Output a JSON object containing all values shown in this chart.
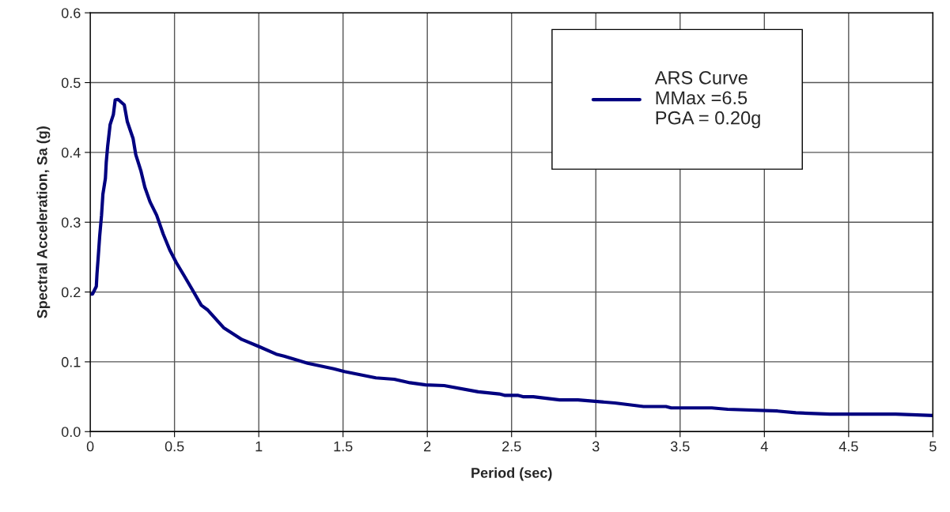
{
  "chart_data": {
    "type": "line",
    "xlabel": "Period (sec)",
    "ylabel": "Spectral Acceleration, Sa (g)",
    "xlim": [
      0,
      5
    ],
    "xticks": [
      0,
      0.5,
      1,
      1.5,
      2,
      2.5,
      3,
      3.5,
      4,
      4.5,
      5
    ],
    "ylim": [
      0,
      0.6
    ],
    "yticks": [
      {
        "value": 0,
        "label": "0.0"
      },
      0.1,
      0.2,
      0.3,
      0.4,
      0.5,
      0.6
    ],
    "grid": true,
    "legend": "top right",
    "marker": "none",
    "line_style": "solid",
    "series": [
      {
        "name": "ARS Curve\nMMax =6.5\nPGA = 0.20g",
        "color": "#000080",
        "x": [
          0.0,
          0.013,
          0.036,
          0.04,
          0.047,
          0.056,
          0.067,
          0.075,
          0.09,
          0.095,
          0.103,
          0.118,
          0.137,
          0.148,
          0.165,
          0.202,
          0.22,
          0.254,
          0.27,
          0.3,
          0.324,
          0.355,
          0.394,
          0.433,
          0.472,
          0.511,
          0.558,
          0.604,
          0.659,
          0.698,
          0.791,
          0.9,
          1.0,
          1.103,
          1.15,
          1.29,
          1.445,
          1.508,
          1.695,
          1.804,
          1.897,
          1.99,
          2.1,
          2.302,
          2.427,
          2.458,
          2.536,
          2.567,
          2.629,
          2.785,
          2.894,
          3.112,
          3.283,
          3.416,
          3.447,
          3.688,
          3.782,
          4.078,
          4.187,
          4.389,
          4.779,
          5.0
        ],
        "values": [
          0.197,
          0.197,
          0.208,
          0.226,
          0.249,
          0.28,
          0.31,
          0.34,
          0.363,
          0.386,
          0.408,
          0.44,
          0.454,
          0.475,
          0.476,
          0.468,
          0.444,
          0.42,
          0.397,
          0.374,
          0.35,
          0.329,
          0.31,
          0.283,
          0.26,
          0.242,
          0.223,
          0.204,
          0.181,
          0.174,
          0.149,
          0.132,
          0.122,
          0.111,
          0.108,
          0.098,
          0.09,
          0.086,
          0.077,
          0.075,
          0.07,
          0.067,
          0.066,
          0.057,
          0.054,
          0.052,
          0.052,
          0.05,
          0.05,
          0.0455,
          0.0455,
          0.041,
          0.036,
          0.036,
          0.034,
          0.034,
          0.032,
          0.0295,
          0.027,
          0.025,
          0.025,
          0.023
        ]
      }
    ]
  }
}
